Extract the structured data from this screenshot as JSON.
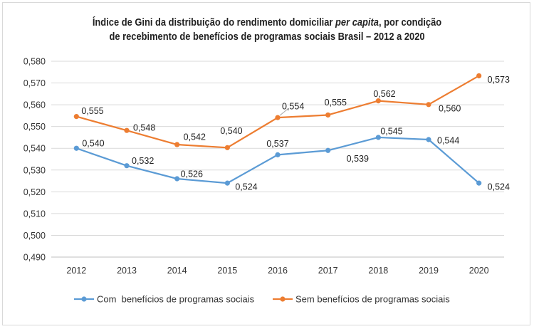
{
  "title": {
    "line1_pre": "Índice de Gini da distribuição do rendimento domiciliar ",
    "line1_em": "per capita",
    "line1_post": ", por condição",
    "line2": "de recebimento de benefícios de programas sociais Brasil – 2012 a 2020"
  },
  "chart_data": {
    "type": "line",
    "categories": [
      "2012",
      "2013",
      "2014",
      "2015",
      "2016",
      "2017",
      "2018",
      "2019",
      "2020"
    ],
    "ylim": [
      0.49,
      0.58
    ],
    "ytick_values": [
      0.49,
      0.5,
      0.51,
      0.52,
      0.53,
      0.54,
      0.55,
      0.56,
      0.57,
      0.58
    ],
    "ytick_labels": [
      "0,490",
      "0,500",
      "0,510",
      "0,520",
      "0,530",
      "0,540",
      "0,550",
      "0,560",
      "0,570",
      "0,580"
    ],
    "grid": true,
    "legend_position": "bottom",
    "series": [
      {
        "name": "Com  benefícios de programas sociais",
        "color": "#5b9bd5",
        "values": [
          0.54,
          0.532,
          0.526,
          0.524,
          0.537,
          0.539,
          0.545,
          0.544,
          0.524
        ],
        "labels": [
          "0,540",
          "0,532",
          "0,526",
          "0,524",
          "0,537",
          "0,539",
          "0,545",
          "0,544",
          "0,524"
        ]
      },
      {
        "name": "Sem benefícios de programas sociais",
        "color": "#ed7d31",
        "values": [
          0.5546,
          0.5482,
          0.5417,
          0.5403,
          0.5541,
          0.5553,
          0.5618,
          0.5601,
          0.5733
        ],
        "labels": [
          "0,555",
          "0,548",
          "0,542",
          "0,540",
          "0,554",
          "0,555",
          "0,562",
          "0,560",
          "0,573"
        ]
      }
    ]
  }
}
